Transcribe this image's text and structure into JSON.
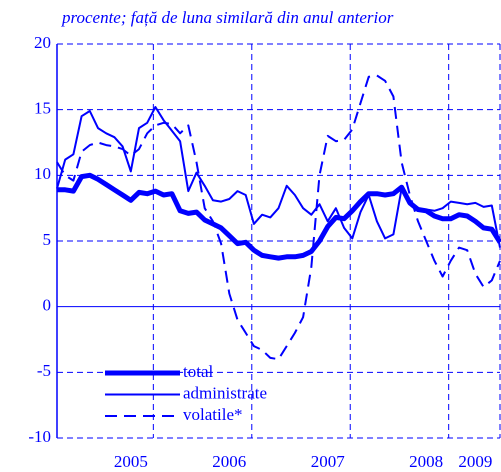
{
  "chart_data": {
    "type": "line",
    "subtitle": "procente; față de luna similară din anul anterior",
    "categories": [
      null,
      null,
      null,
      null,
      null,
      null,
      null,
      null,
      null,
      "2005",
      null,
      null,
      null,
      null,
      null,
      null,
      null,
      null,
      null,
      null,
      null,
      "2006",
      null,
      null,
      null,
      null,
      null,
      null,
      null,
      null,
      null,
      null,
      null,
      "2007",
      null,
      null,
      null,
      null,
      null,
      null,
      null,
      null,
      null,
      null,
      null,
      "2008",
      null,
      null,
      null,
      null,
      null,
      "2009",
      null,
      null,
      null
    ],
    "series": [
      {
        "name": "total",
        "color": "#0000ff",
        "width": 5,
        "dash": false,
        "values": [
          8.9,
          8.9,
          8.8,
          9.9,
          10.0,
          9.7,
          9.3,
          8.9,
          8.5,
          8.1,
          8.7,
          8.6,
          8.8,
          8.5,
          8.6,
          7.3,
          7.1,
          7.2,
          6.6,
          6.3,
          6.0,
          5.4,
          4.8,
          4.9,
          4.3,
          3.9,
          3.8,
          3.7,
          3.8,
          3.8,
          3.9,
          4.2,
          5.0,
          6.1,
          6.8,
          6.7,
          7.3,
          8.0,
          8.6,
          8.6,
          8.5,
          8.6,
          9.1,
          7.9,
          7.4,
          7.3,
          6.9,
          6.7,
          6.7,
          7.0,
          6.9,
          6.5,
          6.0,
          5.9,
          4.9
        ]
      },
      {
        "name": "administrate",
        "color": "#0000ff",
        "width": 2,
        "dash": false,
        "values": [
          9.0,
          11.2,
          11.6,
          14.5,
          14.9,
          13.6,
          13.2,
          12.9,
          12.2,
          10.3,
          13.6,
          14.0,
          15.2,
          14.2,
          13.4,
          12.6,
          8.8,
          10.2,
          9.2,
          8.1,
          8.0,
          8.2,
          8.8,
          8.5,
          6.3,
          7.0,
          6.8,
          7.5,
          9.2,
          8.5,
          7.5,
          7.0,
          7.8,
          6.5,
          7.5,
          6.0,
          5.2,
          7.2,
          8.5,
          6.5,
          5.2,
          5.5,
          9.0,
          8.0,
          7.4,
          7.4,
          7.3,
          7.5,
          8.0,
          7.9,
          7.8,
          7.9,
          7.6,
          7.7,
          4.5
        ]
      },
      {
        "name": "volatile*",
        "color": "#0000ff",
        "width": 2,
        "dash": true,
        "values": [
          11.0,
          10.0,
          9.6,
          11.8,
          12.3,
          12.5,
          12.3,
          12.2,
          12.0,
          11.5,
          12.0,
          13.2,
          13.8,
          14.0,
          13.9,
          13.2,
          13.8,
          11.0,
          7.5,
          6.5,
          4.8,
          1.0,
          -1.0,
          -2.0,
          -3.0,
          -3.3,
          -3.9,
          -4.0,
          -3.0,
          -2.0,
          -0.8,
          3.0,
          10.0,
          13.0,
          12.6,
          12.7,
          13.5,
          15.5,
          17.5,
          17.6,
          17.2,
          16.0,
          11.0,
          8.5,
          6.5,
          5.0,
          3.5,
          2.3,
          3.5,
          4.5,
          4.3,
          2.5,
          1.5,
          2.0,
          3.5
        ]
      }
    ],
    "ylim": [
      -10,
      20
    ],
    "yticks": [
      -10,
      -5,
      0,
      5,
      10,
      15,
      20
    ],
    "grid": true,
    "legend": "lower left"
  }
}
